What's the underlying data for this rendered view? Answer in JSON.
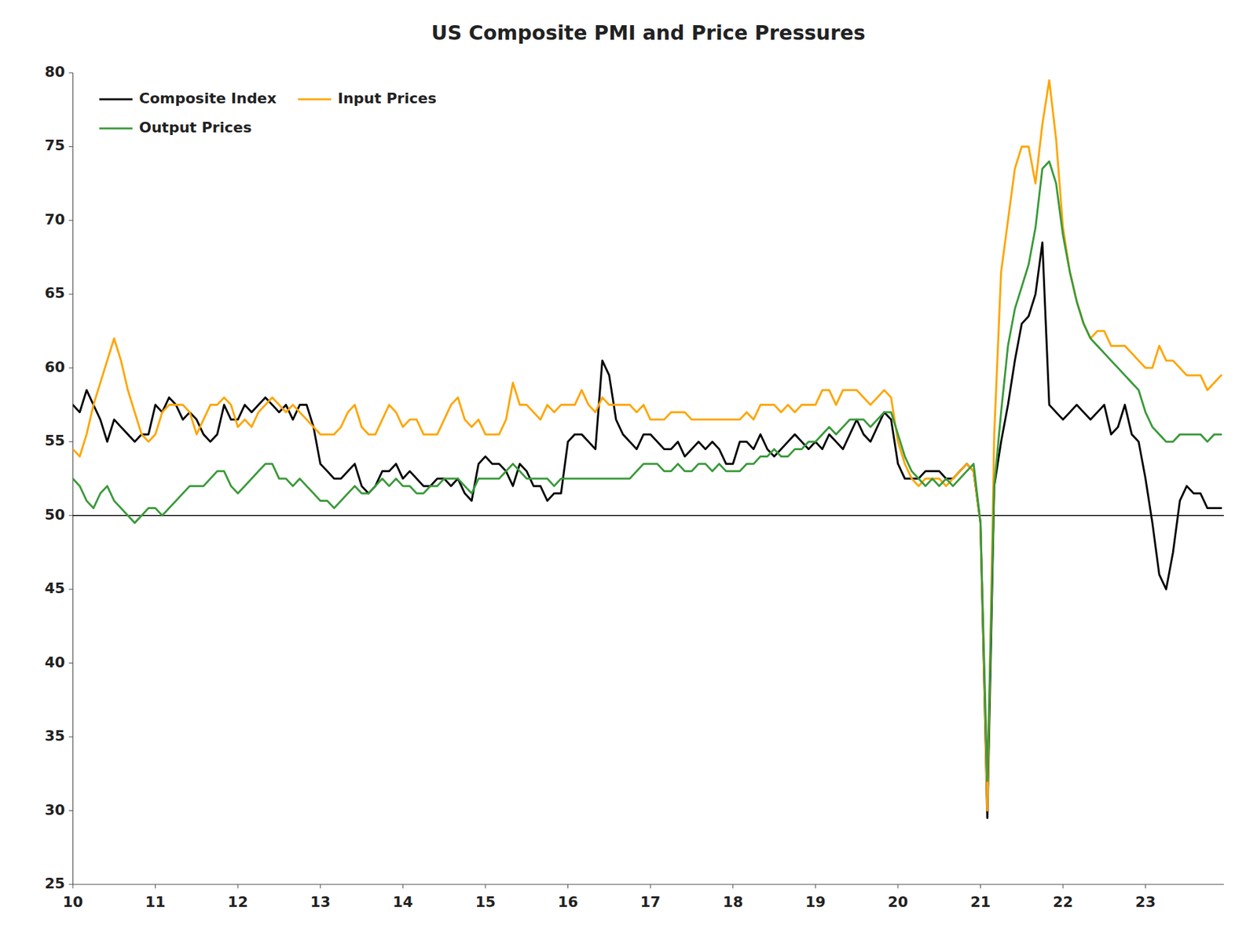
{
  "chart_data": {
    "type": "line",
    "title": "US Composite PMI and Price Pressures",
    "x": [
      10,
      10.083333333333334,
      10.166666666666666,
      10.25,
      10.333333333333334,
      10.416666666666666,
      10.5,
      10.583333333333334,
      10.666666666666666,
      10.75,
      10.833333333333334,
      10.916666666666666,
      11,
      11.083333333333334,
      11.166666666666666,
      11.25,
      11.333333333333334,
      11.416666666666666,
      11.5,
      11.583333333333334,
      11.666666666666666,
      11.75,
      11.833333333333334,
      11.916666666666666,
      12,
      12.083333333333334,
      12.166666666666666,
      12.25,
      12.333333333333334,
      12.416666666666666,
      12.5,
      12.583333333333334,
      12.666666666666666,
      12.75,
      12.833333333333334,
      12.916666666666666,
      13,
      13.083333333333334,
      13.166666666666666,
      13.25,
      13.333333333333334,
      13.416666666666666,
      13.5,
      13.583333333333334,
      13.666666666666666,
      13.75,
      13.833333333333334,
      13.916666666666666,
      14,
      14.083333333333334,
      14.166666666666666,
      14.25,
      14.333333333333334,
      14.416666666666666,
      14.5,
      14.583333333333334,
      14.666666666666666,
      14.75,
      14.833333333333334,
      14.916666666666666,
      15,
      15.083333333333334,
      15.166666666666666,
      15.25,
      15.333333333333334,
      15.416666666666666,
      15.5,
      15.583333333333334,
      15.666666666666666,
      15.75,
      15.833333333333334,
      15.916666666666666,
      16,
      16.083333333333332,
      16.166666666666668,
      16.25,
      16.333333333333332,
      16.416666666666668,
      16.5,
      16.583333333333332,
      16.666666666666668,
      16.75,
      16.833333333333332,
      16.916666666666668,
      17,
      17.083333333333332,
      17.166666666666668,
      17.25,
      17.333333333333332,
      17.416666666666668,
      17.5,
      17.583333333333332,
      17.666666666666668,
      17.75,
      17.833333333333332,
      17.916666666666668,
      18,
      18.083333333333332,
      18.166666666666668,
      18.25,
      18.333333333333332,
      18.416666666666668,
      18.5,
      18.583333333333332,
      18.666666666666668,
      18.75,
      18.833333333333332,
      18.916666666666668,
      19,
      19.083333333333332,
      19.166666666666668,
      19.25,
      19.333333333333332,
      19.416666666666668,
      19.5,
      19.583333333333332,
      19.666666666666668,
      19.75,
      19.833333333333332,
      19.916666666666668,
      20,
      20.083333333333332,
      20.166666666666668,
      20.25,
      20.333333333333332,
      20.416666666666668,
      20.5,
      20.583333333333332,
      20.666666666666668,
      20.75,
      20.833333333333332,
      20.916666666666668,
      21,
      21.083333333333332,
      21.166666666666668,
      21.25,
      21.333333333333332,
      21.416666666666668,
      21.5,
      21.583333333333332,
      21.666666666666668,
      21.75,
      21.833333333333332,
      21.916666666666668,
      22,
      22.083333333333332,
      22.166666666666668,
      22.25,
      22.333333333333332,
      22.416666666666668,
      22.5,
      22.583333333333332,
      22.666666666666668,
      22.75,
      22.833333333333332,
      22.916666666666668,
      23,
      23.083333333333332,
      23.166666666666668,
      23.25,
      23.333333333333332,
      23.416666666666668,
      23.5,
      23.583333333333332,
      23.666666666666668,
      23.75,
      23.833333333333332,
      23.916666666666668
    ],
    "series": [
      {
        "name": "Composite Index",
        "color": "#000000",
        "values": [
          57.5,
          57.0,
          58.5,
          57.5,
          56.5,
          55.0,
          56.5,
          56.0,
          55.5,
          55.0,
          55.5,
          55.5,
          57.5,
          57.0,
          58.0,
          57.5,
          56.5,
          57.0,
          56.5,
          55.5,
          55.0,
          55.5,
          57.5,
          56.5,
          56.5,
          57.5,
          57.0,
          57.5,
          58.0,
          57.5,
          57.0,
          57.5,
          56.5,
          57.5,
          57.5,
          56.0,
          53.5,
          53.0,
          52.5,
          52.5,
          53.0,
          53.5,
          52.0,
          51.5,
          52.0,
          53.0,
          53.0,
          53.5,
          52.5,
          53.0,
          52.5,
          52.0,
          52.0,
          52.5,
          52.5,
          52.0,
          52.5,
          51.5,
          51.0,
          53.5,
          54.0,
          53.5,
          53.5,
          53.0,
          52.0,
          53.5,
          53.0,
          52.0,
          52.0,
          51.0,
          51.5,
          51.5,
          55.0,
          55.5,
          55.5,
          55.0,
          54.5,
          60.5,
          59.5,
          56.5,
          55.5,
          55.0,
          54.5,
          55.5,
          55.5,
          55.0,
          54.5,
          54.5,
          55.0,
          54.0,
          54.5,
          55.0,
          54.5,
          55.0,
          54.5,
          53.5,
          53.5,
          55.0,
          55.0,
          54.5,
          55.5,
          54.5,
          54.0,
          54.5,
          55.0,
          55.5,
          55.0,
          54.5,
          55.0,
          54.5,
          55.5,
          55.0,
          54.5,
          55.5,
          56.5,
          55.5,
          55.0,
          56.0,
          57.0,
          56.5,
          53.5,
          52.5,
          52.5,
          52.5,
          53.0,
          53.0,
          53.0,
          52.5,
          52.5,
          53.0,
          53.5,
          53.0,
          49.5,
          29.5,
          52.0,
          55.0,
          57.5,
          60.5,
          63.0,
          63.5,
          65.0,
          68.5,
          57.5,
          57.0,
          56.5,
          57.0,
          57.5,
          57.0,
          56.5,
          57.0,
          57.5,
          55.5,
          56.0,
          57.5,
          55.5,
          55.0,
          52.5,
          49.5,
          46.0,
          45.0,
          47.5,
          51.0,
          52.0,
          51.5,
          51.5,
          50.5,
          50.5,
          50.5
        ]
      },
      {
        "name": "Input Prices",
        "color": "#FFA500",
        "values": [
          54.5,
          54.0,
          55.5,
          57.5,
          59.0,
          60.5,
          62.0,
          60.5,
          58.5,
          57.0,
          55.5,
          55.0,
          55.5,
          57.0,
          57.5,
          57.5,
          57.5,
          57.0,
          55.5,
          56.5,
          57.5,
          57.5,
          58.0,
          57.5,
          56.0,
          56.5,
          56.0,
          57.0,
          57.5,
          58.0,
          57.5,
          57.0,
          57.5,
          57.0,
          56.5,
          56.0,
          55.5,
          55.5,
          55.5,
          56.0,
          57.0,
          57.5,
          56.0,
          55.5,
          55.5,
          56.5,
          57.5,
          57.0,
          56.0,
          56.5,
          56.5,
          55.5,
          55.5,
          55.5,
          56.5,
          57.5,
          58.0,
          56.5,
          56.0,
          56.5,
          55.5,
          55.5,
          55.5,
          56.5,
          59.0,
          57.5,
          57.5,
          57.0,
          56.5,
          57.5,
          57.0,
          57.5,
          57.5,
          57.5,
          58.5,
          57.5,
          57.0,
          58.0,
          57.5,
          57.5,
          57.5,
          57.5,
          57.0,
          57.5,
          56.5,
          56.5,
          56.5,
          57.0,
          57.0,
          57.0,
          56.5,
          56.5,
          56.5,
          56.5,
          56.5,
          56.5,
          56.5,
          56.5,
          57.0,
          56.5,
          57.5,
          57.5,
          57.5,
          57.0,
          57.5,
          57.0,
          57.5,
          57.5,
          57.5,
          58.5,
          58.5,
          57.5,
          58.5,
          58.5,
          58.5,
          58.0,
          57.5,
          58.0,
          58.5,
          58.0,
          55.0,
          53.5,
          52.5,
          52.0,
          52.5,
          52.5,
          52.5,
          52.0,
          52.5,
          53.0,
          53.5,
          53.0,
          49.5,
          30.0,
          55.5,
          66.5,
          70.0,
          73.5,
          75.0,
          75.0,
          72.5,
          76.5,
          79.5,
          75.5,
          69.5,
          66.5,
          64.5,
          63.0,
          62.0,
          62.5,
          62.5,
          61.5,
          61.5,
          61.5,
          61.0,
          60.5,
          60.0,
          60.0,
          61.5,
          60.5,
          60.5,
          60.0,
          59.5,
          59.5,
          59.5,
          58.5,
          59.0,
          59.5
        ]
      },
      {
        "name": "Output Prices",
        "color": "#3a9a3a",
        "values": [
          52.5,
          52.0,
          51.0,
          50.5,
          51.5,
          52.0,
          51.0,
          50.5,
          50.0,
          49.5,
          50.0,
          50.5,
          50.5,
          50.0,
          50.5,
          51.0,
          51.5,
          52.0,
          52.0,
          52.0,
          52.5,
          53.0,
          53.0,
          52.0,
          51.5,
          52.0,
          52.5,
          53.0,
          53.5,
          53.5,
          52.5,
          52.5,
          52.0,
          52.5,
          52.0,
          51.5,
          51.0,
          51.0,
          50.5,
          51.0,
          51.5,
          52.0,
          51.5,
          51.5,
          52.0,
          52.5,
          52.0,
          52.5,
          52.0,
          52.0,
          51.5,
          51.5,
          52.0,
          52.0,
          52.5,
          52.5,
          52.5,
          52.0,
          51.5,
          52.5,
          52.5,
          52.5,
          52.5,
          53.0,
          53.5,
          53.0,
          52.5,
          52.5,
          52.5,
          52.5,
          52.0,
          52.5,
          52.5,
          52.5,
          52.5,
          52.5,
          52.5,
          52.5,
          52.5,
          52.5,
          52.5,
          52.5,
          53.0,
          53.5,
          53.5,
          53.5,
          53.0,
          53.0,
          53.5,
          53.0,
          53.0,
          53.5,
          53.5,
          53.0,
          53.5,
          53.0,
          53.0,
          53.0,
          53.5,
          53.5,
          54.0,
          54.0,
          54.5,
          54.0,
          54.0,
          54.5,
          54.5,
          55.0,
          55.0,
          55.5,
          56.0,
          55.5,
          56.0,
          56.5,
          56.5,
          56.5,
          56.0,
          56.5,
          57.0,
          57.0,
          55.5,
          54.0,
          53.0,
          52.5,
          52.0,
          52.5,
          52.0,
          52.5,
          52.0,
          52.5,
          53.0,
          53.5,
          49.5,
          32.0,
          52.0,
          57.0,
          61.5,
          64.0,
          65.5,
          67.0,
          69.5,
          73.5,
          74.0,
          72.5,
          69.0,
          66.5,
          64.5,
          63.0,
          62.0,
          61.5,
          61.0,
          60.5,
          60.0,
          59.5,
          59.0,
          58.5,
          57.0,
          56.0,
          55.5,
          55.0,
          55.0,
          55.5,
          55.5,
          55.5,
          55.5,
          55.0,
          55.5,
          55.5
        ]
      }
    ],
    "hline": 50,
    "xlim": [
      10,
      23.95
    ],
    "ylim": [
      25,
      80
    ],
    "xticks": [
      10,
      11,
      12,
      13,
      14,
      15,
      16,
      17,
      18,
      19,
      20,
      21,
      22,
      23
    ],
    "yticks": [
      25,
      30,
      35,
      40,
      45,
      50,
      55,
      60,
      65,
      70,
      75,
      80
    ],
    "legend": "upper-left",
    "grid": false
  }
}
